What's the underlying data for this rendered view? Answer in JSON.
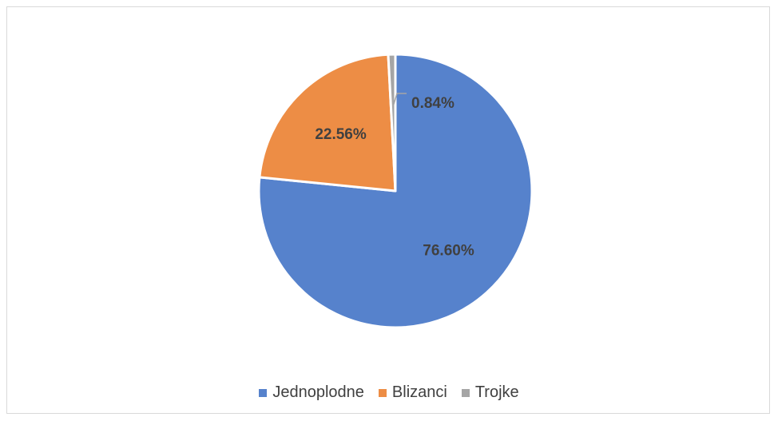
{
  "chart_data": {
    "type": "pie",
    "categories": [
      "Jednoplodne",
      "Blizanci",
      "Trojke"
    ],
    "values": [
      76.6,
      22.56,
      0.84
    ],
    "value_labels": [
      "76.60%",
      "22.56%",
      "0.84%"
    ],
    "colors": [
      "#5682CC",
      "#ED8D45",
      "#A5A5A5"
    ],
    "start_angle_deg": 0,
    "direction": "clockwise",
    "legend_position": "bottom",
    "grid": false
  }
}
